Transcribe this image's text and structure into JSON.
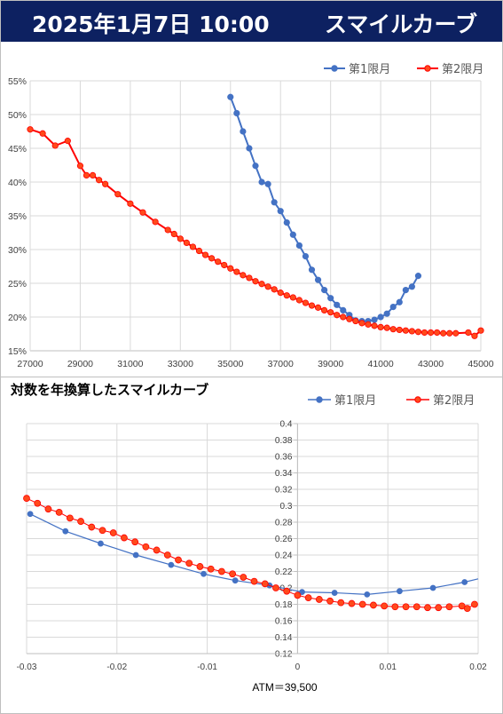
{
  "header": {
    "date": "2025年1月7日 10:00",
    "title": "スマイルカーブ"
  },
  "colors": {
    "header_bg": "#0d2161",
    "series1": "#4472c4",
    "series2": "#ff0000",
    "series2_fill": "#ff4a1c"
  },
  "chart_data": [
    {
      "type": "line",
      "title": "",
      "xlim": [
        27000,
        45000
      ],
      "ylim": [
        0.15,
        0.55
      ],
      "x_ticks": [
        "27000",
        "29000",
        "31000",
        "33000",
        "35000",
        "37000",
        "39000",
        "41000",
        "43000",
        "45000"
      ],
      "y_ticks": [
        "15%",
        "20%",
        "25%",
        "30%",
        "35%",
        "40%",
        "45%",
        "50%",
        "55%"
      ],
      "legend_position": "top-right",
      "series": [
        {
          "name": "第1限月",
          "color": "#4472c4",
          "x": [
            35000,
            35250,
            35500,
            35750,
            36000,
            36250,
            36500,
            36750,
            37000,
            37250,
            37500,
            37750,
            38000,
            38250,
            38500,
            38750,
            39000,
            39250,
            39500,
            39750,
            40000,
            40250,
            40500,
            40750,
            41000,
            41250,
            41500,
            41750,
            42000,
            42250,
            42500
          ],
          "y": [
            0.526,
            0.502,
            0.475,
            0.45,
            0.424,
            0.4,
            0.397,
            0.37,
            0.357,
            0.34,
            0.322,
            0.306,
            0.29,
            0.27,
            0.255,
            0.24,
            0.228,
            0.218,
            0.21,
            0.203,
            0.195,
            0.194,
            0.194,
            0.196,
            0.2,
            0.205,
            0.215,
            0.222,
            0.24,
            0.245,
            0.261
          ]
        },
        {
          "name": "第2限月",
          "color": "#ff0000",
          "x": [
            27000,
            27500,
            28000,
            28500,
            29000,
            29250,
            29500,
            29750,
            30000,
            30500,
            31000,
            31500,
            32000,
            32500,
            32750,
            33000,
            33250,
            33500,
            33750,
            34000,
            34250,
            34500,
            34750,
            35000,
            35250,
            35500,
            35750,
            36000,
            36250,
            36500,
            36750,
            37000,
            37250,
            37500,
            37750,
            38000,
            38250,
            38500,
            38750,
            39000,
            39250,
            39500,
            39750,
            40000,
            40250,
            40500,
            40750,
            41000,
            41250,
            41500,
            41750,
            42000,
            42250,
            42500,
            42750,
            43000,
            43250,
            43500,
            43750,
            44000,
            44500,
            44750,
            45000
          ],
          "y": [
            0.478,
            0.472,
            0.454,
            0.461,
            0.424,
            0.41,
            0.41,
            0.403,
            0.397,
            0.382,
            0.368,
            0.355,
            0.341,
            0.329,
            0.323,
            0.316,
            0.31,
            0.304,
            0.298,
            0.292,
            0.287,
            0.282,
            0.277,
            0.272,
            0.267,
            0.262,
            0.258,
            0.253,
            0.249,
            0.245,
            0.241,
            0.236,
            0.232,
            0.229,
            0.225,
            0.221,
            0.217,
            0.214,
            0.21,
            0.207,
            0.203,
            0.2,
            0.197,
            0.194,
            0.191,
            0.189,
            0.187,
            0.185,
            0.184,
            0.182,
            0.181,
            0.18,
            0.179,
            0.178,
            0.177,
            0.177,
            0.177,
            0.176,
            0.176,
            0.176,
            0.177,
            0.172,
            0.18
          ]
        }
      ]
    },
    {
      "type": "line",
      "title": "対数を年換算したスマイルカーブ",
      "xlim": [
        -0.03,
        0.02
      ],
      "ylim": [
        0.12,
        0.4
      ],
      "x_ticks": [
        "-0.03",
        "-0.02",
        "-0.01",
        "0",
        "0.01",
        "0.02"
      ],
      "y_ticks": [
        "0.12",
        "0.14",
        "0.16",
        "0.18",
        "0.2",
        "0.22",
        "0.24",
        "0.26",
        "0.28",
        "0.3",
        "0.32",
        "0.34",
        "0.36",
        "0.38",
        "0.4"
      ],
      "legend_position": "top-right",
      "annotation": "ATM＝39,500",
      "series": [
        {
          "name": "第1限月",
          "color": "#4472c4",
          "x": [
            -0.0296,
            -0.0257,
            -0.0218,
            -0.0179,
            -0.014,
            -0.0104,
            -0.0069,
            -0.0031,
            0.0005,
            0.0041,
            0.0077,
            0.0113,
            0.015,
            0.0185,
            0.02
          ],
          "y": [
            0.29,
            0.269,
            0.254,
            0.24,
            0.228,
            0.217,
            0.209,
            0.203,
            0.195,
            0.194,
            0.192,
            0.196,
            0.2,
            0.207,
            0.211
          ]
        },
        {
          "name": "第2限月",
          "color": "#ff0000",
          "x": [
            -0.03,
            -0.0288,
            -0.0276,
            -0.0264,
            -0.0252,
            -0.024,
            -0.0228,
            -0.0216,
            -0.0204,
            -0.0192,
            -0.018,
            -0.0168,
            -0.0156,
            -0.0144,
            -0.0132,
            -0.012,
            -0.0108,
            -0.0096,
            -0.0084,
            -0.0072,
            -0.006,
            -0.0048,
            -0.0036,
            -0.0024,
            -0.0012,
            0.0,
            0.0012,
            0.0024,
            0.0036,
            0.0048,
            0.006,
            0.0072,
            0.0084,
            0.0096,
            0.0108,
            0.012,
            0.0132,
            0.0144,
            0.0156,
            0.0168,
            0.0182,
            0.0188,
            0.0196
          ],
          "y": [
            0.309,
            0.303,
            0.296,
            0.292,
            0.285,
            0.281,
            0.274,
            0.27,
            0.267,
            0.261,
            0.256,
            0.25,
            0.246,
            0.24,
            0.234,
            0.23,
            0.226,
            0.223,
            0.22,
            0.217,
            0.213,
            0.208,
            0.205,
            0.2,
            0.196,
            0.191,
            0.188,
            0.186,
            0.184,
            0.182,
            0.181,
            0.18,
            0.179,
            0.178,
            0.177,
            0.177,
            0.177,
            0.176,
            0.176,
            0.177,
            0.178,
            0.175,
            0.18
          ]
        }
      ]
    }
  ]
}
